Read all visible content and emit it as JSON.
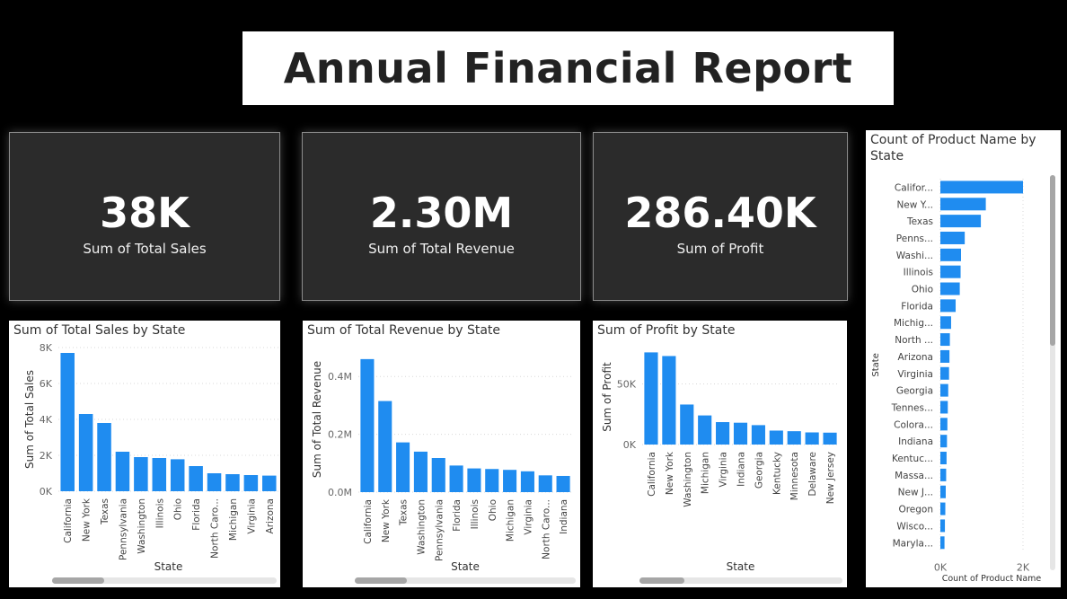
{
  "report_title": "Annual Financial Report",
  "kpis": [
    {
      "value": "38K",
      "label": "Sum of Total Sales"
    },
    {
      "value": "2.30M",
      "label": "Sum of Total Revenue"
    },
    {
      "value": "286.40K",
      "label": "Sum of Profit"
    }
  ],
  "colors": {
    "bar": "#1f8cf0",
    "card_bg": "#2b2b2b",
    "page_bg": "#000000"
  },
  "chart_data": [
    {
      "type": "bar",
      "title": "Sum of Total Sales by State",
      "xlabel": "State",
      "ylabel": "Sum of Total Sales",
      "categories": [
        "California",
        "New York",
        "Texas",
        "Pennsylvania",
        "Washington",
        "Illinois",
        "Ohio",
        "Florida",
        "North Caro...",
        "Michigan",
        "Virginia",
        "Arizona"
      ],
      "values": [
        7700,
        4300,
        3800,
        2200,
        1900,
        1850,
        1780,
        1400,
        1000,
        950,
        900,
        870
      ],
      "ylim": [
        0,
        8000
      ],
      "yticks": [
        0,
        2000,
        4000,
        6000,
        8000
      ],
      "ytick_labels": [
        "0K",
        "2K",
        "4K",
        "6K",
        "8K"
      ],
      "grid": true
    },
    {
      "type": "bar",
      "title": "Sum of Total Revenue by State",
      "xlabel": "State",
      "ylabel": "Sum of Total Revenue",
      "categories": [
        "California",
        "New York",
        "Texas",
        "Washington",
        "Pennsylvania",
        "Florida",
        "Illinois",
        "Ohio",
        "Michigan",
        "Virginia",
        "North Caro...",
        "Indiana"
      ],
      "values": [
        460000,
        315000,
        172000,
        140000,
        118000,
        92000,
        82000,
        80000,
        77000,
        72000,
        58000,
        56000
      ],
      "ylim": [
        0,
        500000
      ],
      "yticks": [
        0,
        200000,
        400000
      ],
      "ytick_labels": [
        "0.0M",
        "0.2M",
        "0.4M"
      ],
      "grid": true
    },
    {
      "type": "bar",
      "title": "Sum of Profit by State",
      "xlabel": "State",
      "ylabel": "Sum of Profit",
      "categories": [
        "California",
        "New York",
        "Washington",
        "Michigan",
        "Virginia",
        "Indiana",
        "Georgia",
        "Kentucky",
        "Minnesota",
        "Delaware",
        "New Jersey"
      ],
      "values": [
        76000,
        73000,
        33000,
        24000,
        18500,
        18000,
        16000,
        11500,
        11000,
        10000,
        9800
      ],
      "ylim": [
        0,
        80000
      ],
      "yticks": [
        0,
        50000
      ],
      "ytick_labels": [
        "0K",
        "50K"
      ],
      "grid": true
    },
    {
      "type": "bar",
      "orientation": "horizontal",
      "title": "Count of Product Name by State",
      "xlabel": "Count of Product Name",
      "ylabel": "State",
      "categories": [
        "Califor...",
        "New Y...",
        "Texas",
        "Penns...",
        "Washi...",
        "Illinois",
        "Ohio",
        "Florida",
        "Michig...",
        "North ...",
        "Arizona",
        "Virginia",
        "Georgia",
        "Tennes...",
        "Colora...",
        "Indiana",
        "Kentuc...",
        "Massa...",
        "New J...",
        "Oregon",
        "Wisco...",
        "Maryla..."
      ],
      "values": [
        2000,
        1100,
        980,
        590,
        500,
        490,
        470,
        370,
        260,
        230,
        220,
        210,
        190,
        180,
        170,
        160,
        150,
        140,
        130,
        120,
        110,
        100
      ],
      "xlim": [
        0,
        2500
      ],
      "xticks": [
        0,
        2000
      ],
      "xtick_labels": [
        "0K",
        "2K"
      ],
      "grid": true
    }
  ]
}
